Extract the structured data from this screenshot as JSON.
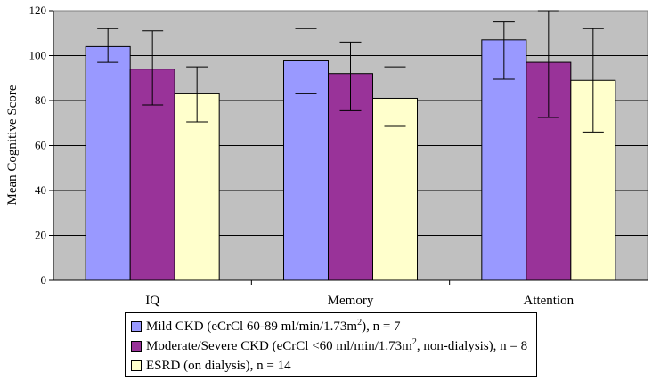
{
  "chart_data": {
    "type": "bar",
    "title": "",
    "xlabel": "",
    "ylabel": "Mean Cognitive Score",
    "ylim": [
      0,
      120
    ],
    "yticks": [
      0,
      20,
      40,
      60,
      80,
      100,
      120
    ],
    "grid": true,
    "legend_position": "bottom",
    "plot_background": "#C0C0C0",
    "categories": [
      "IQ",
      "Memory",
      "Attention"
    ],
    "series": [
      {
        "name": "Mild CKD (eCrCl 60-89 ml/min/1.73m2), n = 7",
        "legend": {
          "before_sup": "Mild CKD (eCrCl 60-89 ml/min/1.73m",
          "sup": "2",
          "after_sup": "), n = 7"
        },
        "color": "#9999FF",
        "values": [
          104,
          98,
          107
        ],
        "error_low": [
          97,
          83,
          89.5
        ],
        "error_high": [
          112,
          112,
          115
        ]
      },
      {
        "name": "Moderate/Severe CKD (eCrCl <60 ml/min/1.73m2, non-dialysis), n = 8",
        "legend": {
          "before_sup": "Moderate/Severe CKD (eCrCl <60 ml/min/1.73m",
          "sup": "2",
          "after_sup": ", non-dialysis), n = 8"
        },
        "color": "#993399",
        "values": [
          94,
          92,
          97
        ],
        "error_low": [
          78,
          75.5,
          72.5
        ],
        "error_high": [
          111,
          106,
          120
        ]
      },
      {
        "name": "ESRD (on dialysis), n = 14",
        "legend": {
          "before_sup": "ESRD (on dialysis), n = 14",
          "sup": "",
          "after_sup": ""
        },
        "color": "#FFFFCC",
        "values": [
          83,
          81,
          89
        ],
        "error_low": [
          70.5,
          68.5,
          66
        ],
        "error_high": [
          95,
          95,
          112
        ]
      }
    ]
  }
}
